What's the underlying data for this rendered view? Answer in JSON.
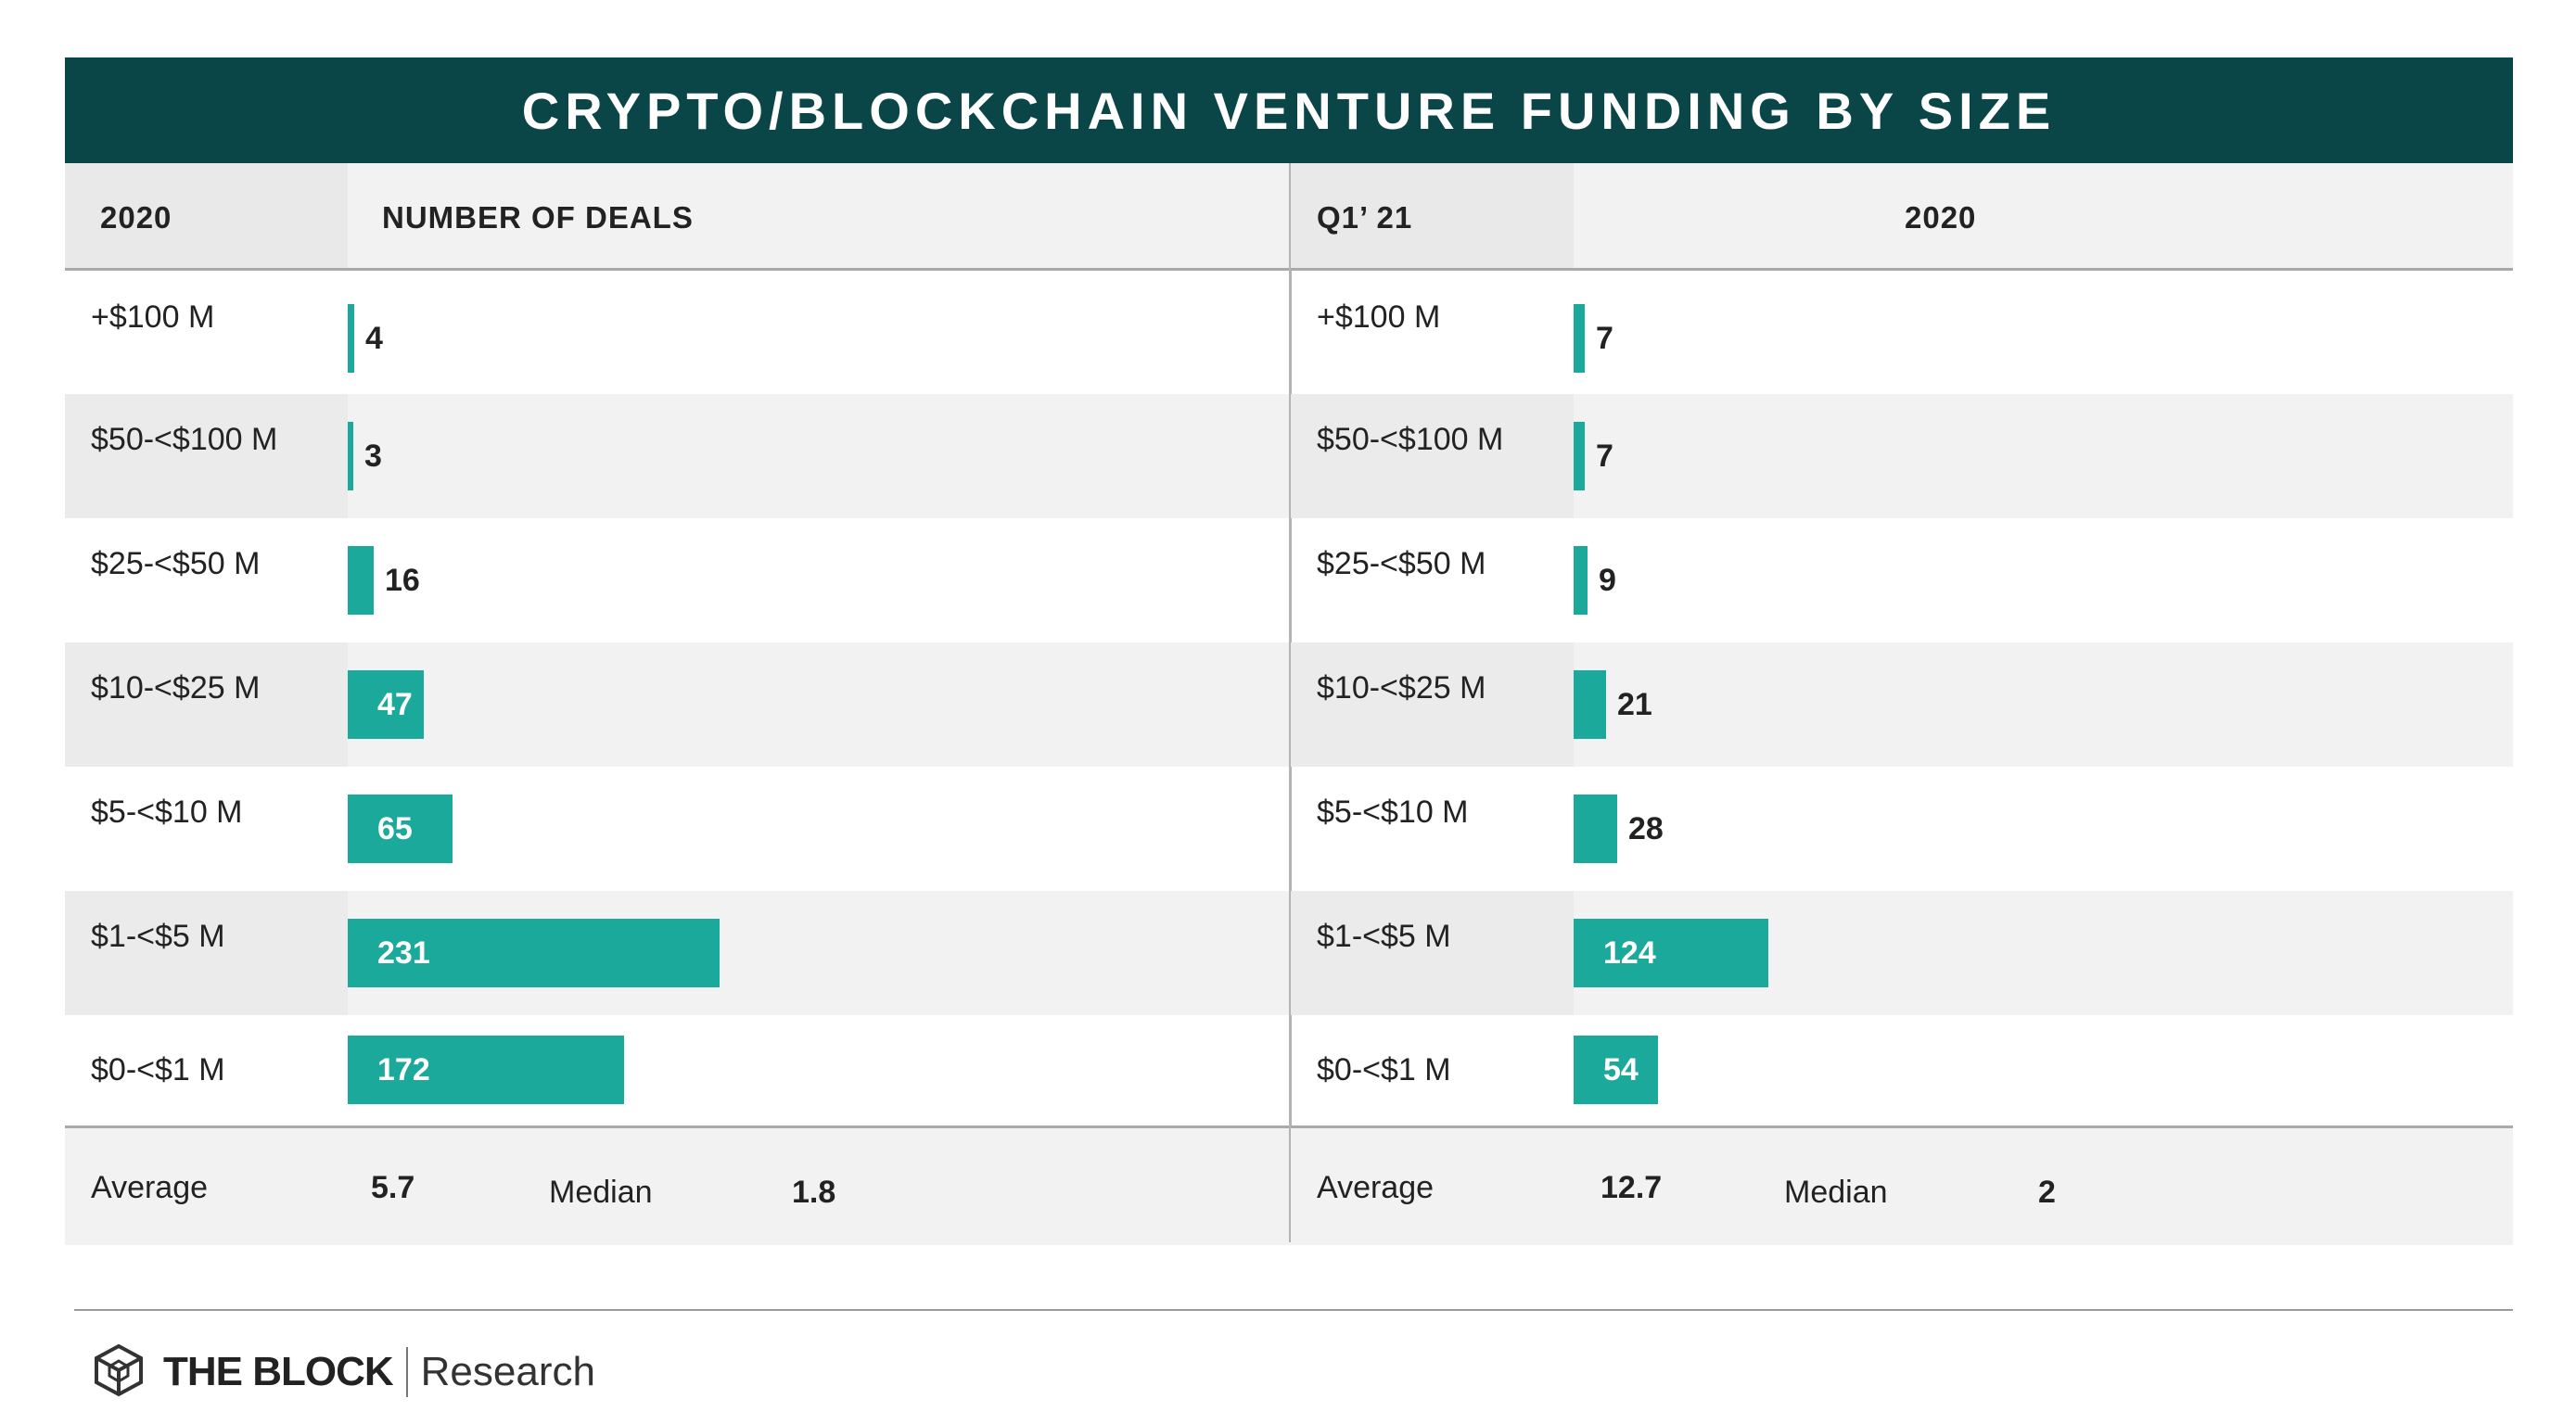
{
  "title": "CRYPTO/BLOCKCHAIN VENTURE FUNDING BY SIZE",
  "brand": {
    "name": "THE BLOCK",
    "sub": "Research",
    "logo": "the-block-cube-icon"
  },
  "colors": {
    "banner": "#0a4547",
    "bar": "#1aa99b"
  },
  "chart_data": [
    {
      "type": "bar",
      "orientation": "horizontal",
      "header_category": "2020",
      "header_values": "NUMBER OF DEALS",
      "categories": [
        "+$100 M",
        "$50-<$100 M",
        "$25-<$50 M",
        "$10-<$25 M",
        "$5-<$10 M",
        "$1-<$5 M",
        "$0-<$1 M"
      ],
      "values": [
        4,
        3,
        16,
        47,
        65,
        231,
        172
      ],
      "value_labels": [
        "4",
        "3",
        "16",
        "47",
        "65",
        "231",
        "172"
      ],
      "footer": {
        "average_label": "Average",
        "average": "5.7",
        "median_label": "Median",
        "median": "1.8"
      }
    },
    {
      "type": "bar",
      "orientation": "horizontal",
      "header_category": "Q1’ 21",
      "header_values": "2020",
      "categories": [
        "+$100 M",
        "$50-<$100 M",
        "$25-<$50 M",
        "$10-<$25 M",
        "$5-<$10 M",
        "$1-<$5 M",
        "$0-<$1 M"
      ],
      "values": [
        7,
        7,
        9,
        21,
        28,
        124,
        54
      ],
      "value_labels": [
        "7",
        "7",
        "9",
        "21",
        "28",
        "124",
        "54"
      ],
      "footer": {
        "average_label": "Average",
        "average": "12.7",
        "median_label": "Median",
        "median": "2"
      }
    }
  ]
}
